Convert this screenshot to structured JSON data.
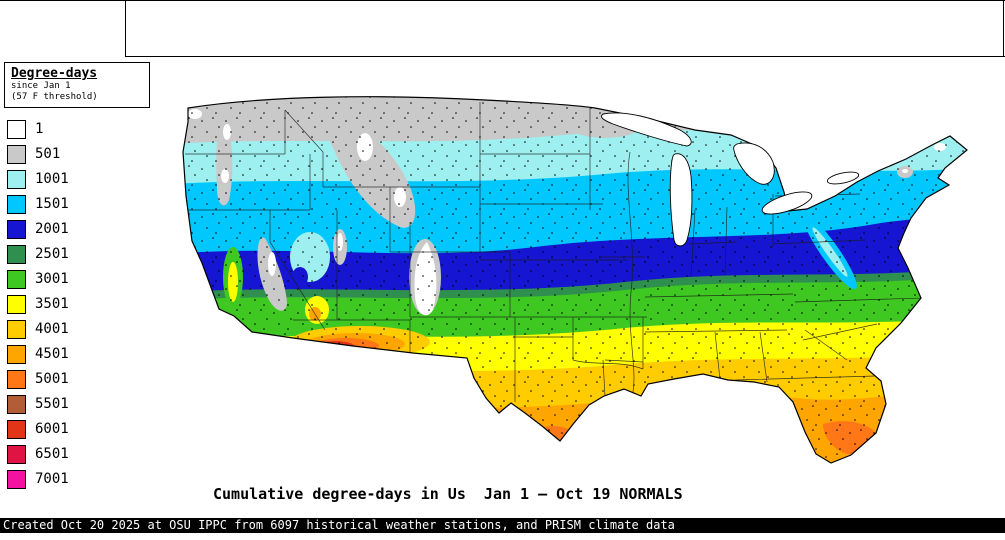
{
  "legend": {
    "title": "Degree-days",
    "subtitle1": "since Jan 1",
    "subtitle2": "(57 F threshold)",
    "entries": [
      {
        "label": "1",
        "color": "#ffffff"
      },
      {
        "label": "501",
        "color": "#c9c9c9"
      },
      {
        "label": "1001",
        "color": "#9ef0f0"
      },
      {
        "label": "1501",
        "color": "#00c8ff"
      },
      {
        "label": "2001",
        "color": "#1616d2"
      },
      {
        "label": "2501",
        "color": "#2f8f4f"
      },
      {
        "label": "3001",
        "color": "#3fc822"
      },
      {
        "label": "3501",
        "color": "#ffff00"
      },
      {
        "label": "4001",
        "color": "#ffcc00"
      },
      {
        "label": "4501",
        "color": "#ffa500"
      },
      {
        "label": "5001",
        "color": "#ff7716"
      },
      {
        "label": "5501",
        "color": "#b25d35"
      },
      {
        "label": "6001",
        "color": "#e23417"
      },
      {
        "label": "6501",
        "color": "#df1445"
      },
      {
        "label": "7001",
        "color": "#f313a0"
      }
    ]
  },
  "map": {
    "caption": "Cumulative degree-days in Us  Jan 1 — Oct 19 NORMALS"
  },
  "footer": {
    "text": "Created Oct 20 2025 at OSU IPPC from 6097 historical weather stations, and PRISM climate data"
  }
}
